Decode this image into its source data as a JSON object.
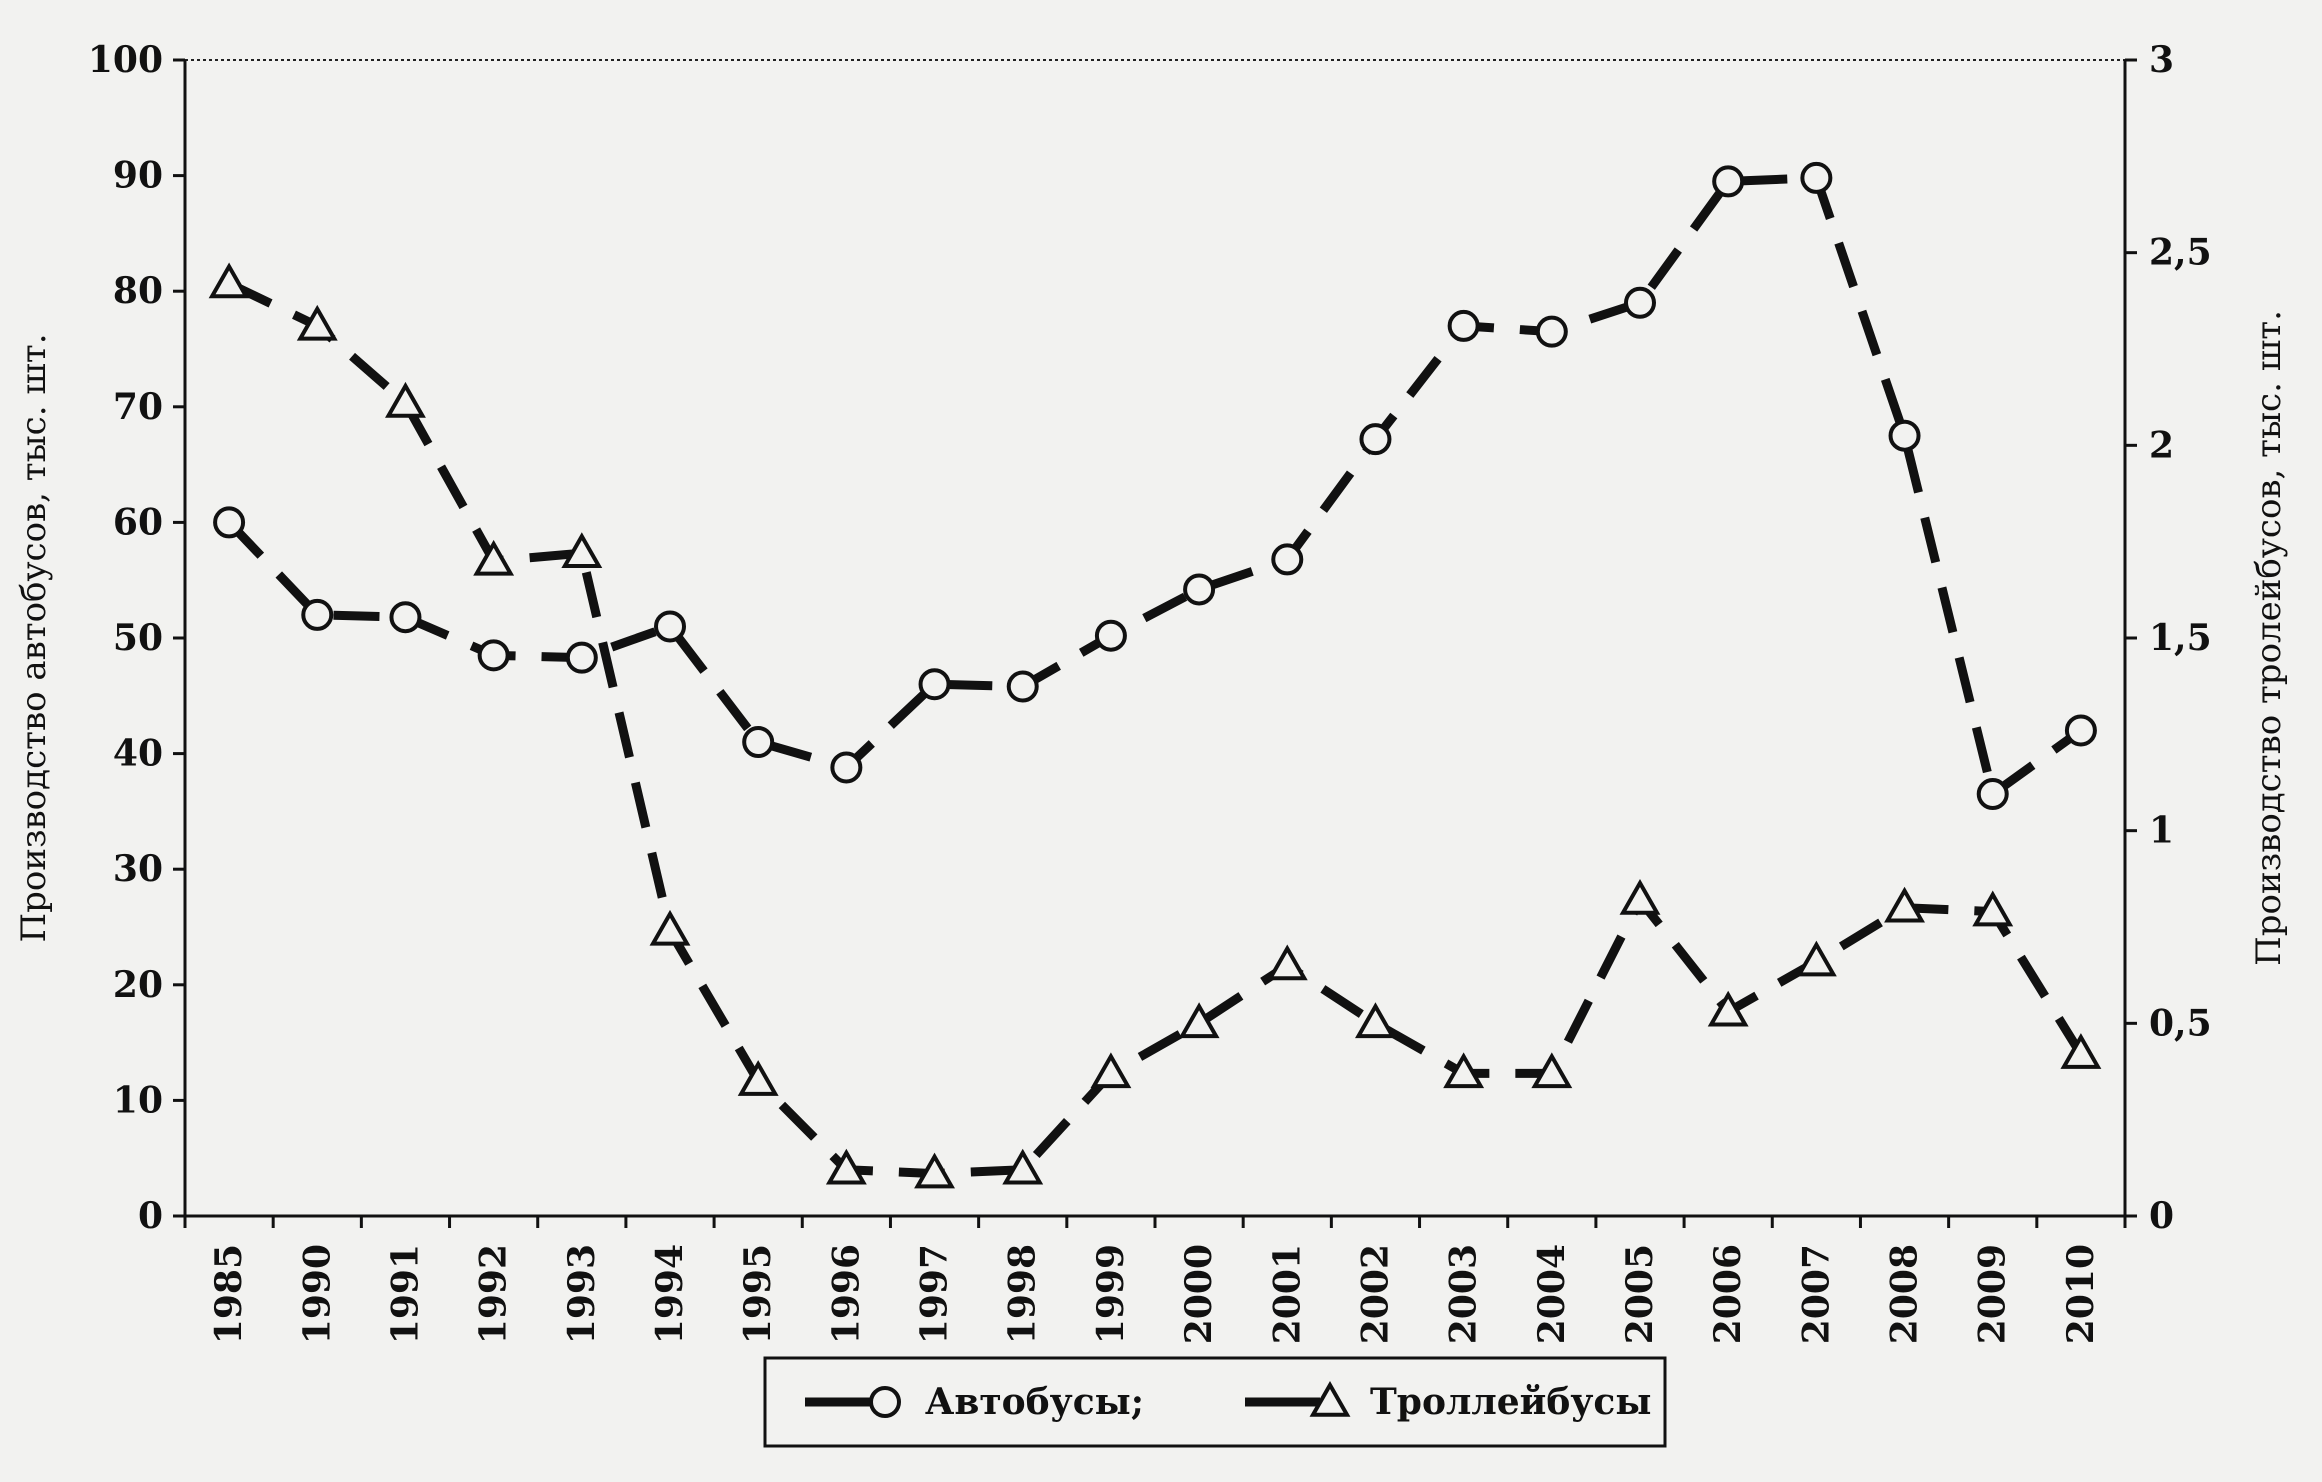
{
  "chart_data": {
    "type": "line",
    "categories": [
      "1985",
      "1990",
      "1991",
      "1992",
      "1993",
      "1994",
      "1995",
      "1996",
      "1997",
      "1998",
      "1999",
      "2000",
      "2001",
      "2002",
      "2003",
      "2004",
      "2005",
      "2006",
      "2007",
      "2008",
      "2009",
      "2010"
    ],
    "y_left": {
      "label": "Производство автобусов, тыс. шт.",
      "ylim": [
        0,
        100
      ],
      "ticks": [
        "0",
        "10",
        "20",
        "30",
        "40",
        "50",
        "60",
        "70",
        "80",
        "90",
        "100"
      ]
    },
    "y_right": {
      "label": "Производство тролейбусов, тыс. шт.",
      "ylim": [
        0,
        3
      ],
      "ticks": [
        "0",
        "0,5",
        "1",
        "1,5",
        "2",
        "2,5",
        "3"
      ]
    },
    "series": [
      {
        "name": "Автобусы;",
        "axis": "left",
        "marker": "circle",
        "values": [
          60,
          52,
          51.8,
          48.5,
          48.3,
          51,
          41,
          38.8,
          46,
          45.8,
          50.2,
          54.2,
          56.8,
          67.2,
          77,
          76.5,
          79,
          89.5,
          89.8,
          67.5,
          36.5,
          42
        ]
      },
      {
        "name": "Троллейбусы",
        "axis": "right",
        "marker": "triangle",
        "values": [
          2.42,
          2.31,
          2.11,
          1.7,
          1.72,
          0.74,
          0.35,
          0.12,
          0.11,
          0.12,
          0.37,
          0.5,
          0.65,
          0.5,
          0.37,
          0.37,
          0.82,
          0.53,
          0.66,
          0.8,
          0.79,
          0.42
        ]
      }
    ],
    "grid": false,
    "legend_position": "bottom"
  },
  "colors": {
    "line": "#111111",
    "marker_fill": "#f2f2f0",
    "background": "#f2f2f0"
  }
}
